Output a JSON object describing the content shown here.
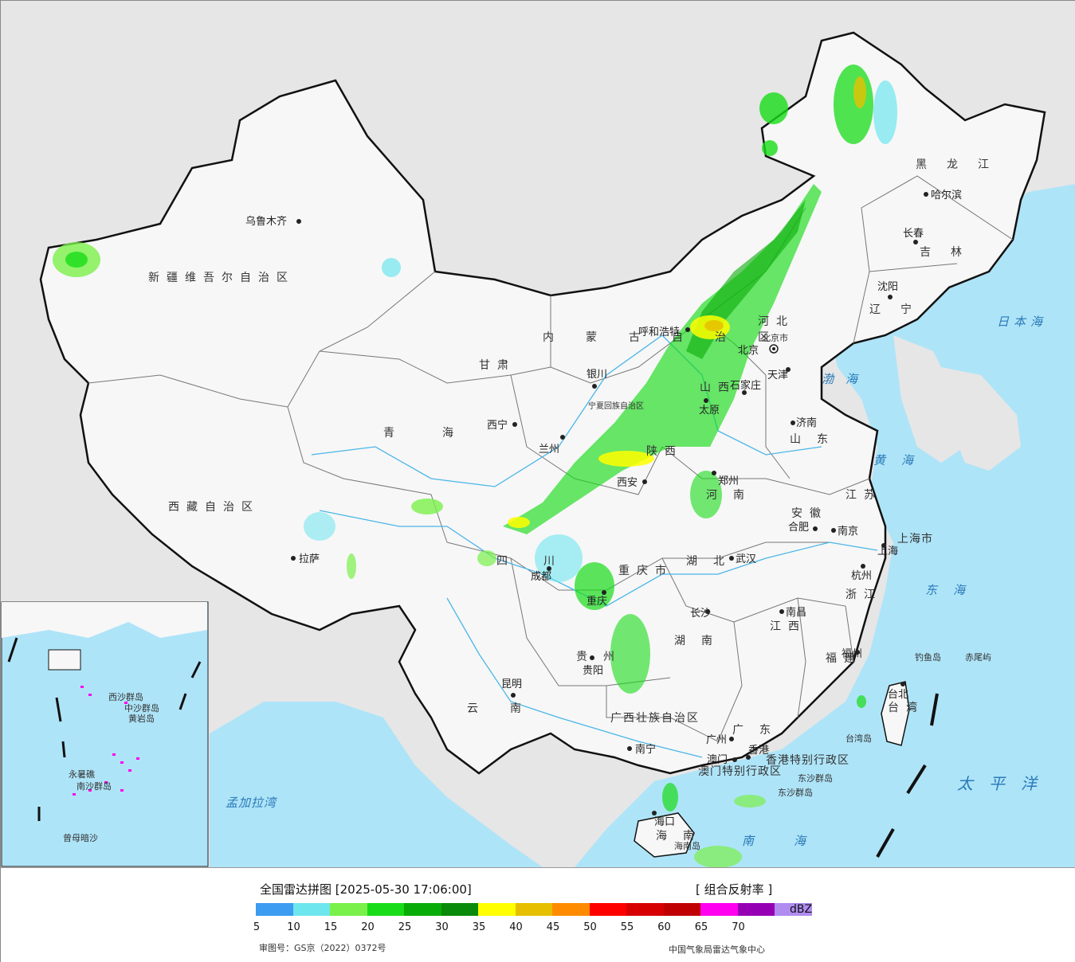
{
  "map": {
    "provinces": [
      {
        "id": "xinjiang",
        "label": "新疆维吾尔自治区"
      },
      {
        "id": "xizang",
        "label": "西藏自治区"
      },
      {
        "id": "qinghai",
        "label": "青海"
      },
      {
        "id": "gansu",
        "label": "甘肃"
      },
      {
        "id": "neimenggu",
        "label": "内蒙古自治区"
      },
      {
        "id": "heilongjiang",
        "label": "黑龙江"
      },
      {
        "id": "jilin",
        "label": "吉林"
      },
      {
        "id": "liaoning",
        "label": "辽宁"
      },
      {
        "id": "hebei",
        "label": "河北"
      },
      {
        "id": "shanxi",
        "label": "山西"
      },
      {
        "id": "shaanxi",
        "label": "陕西"
      },
      {
        "id": "shandong",
        "label": "山东"
      },
      {
        "id": "henan",
        "label": "河南"
      },
      {
        "id": "jiangsu",
        "label": "江苏"
      },
      {
        "id": "anhui",
        "label": "安徽"
      },
      {
        "id": "hubei",
        "label": "湖北"
      },
      {
        "id": "sichuan",
        "label": "四川"
      },
      {
        "id": "chongqing",
        "label": "重庆市"
      },
      {
        "id": "zhejiang",
        "label": "浙江"
      },
      {
        "id": "jiangxi",
        "label": "江西"
      },
      {
        "id": "hunan",
        "label": "湖南"
      },
      {
        "id": "guizhou",
        "label": "贵州"
      },
      {
        "id": "yunnan",
        "label": "云南"
      },
      {
        "id": "fujian",
        "label": "福建"
      },
      {
        "id": "guangxi",
        "label": "广西壮族自治区"
      },
      {
        "id": "guangdong",
        "label": "广东"
      },
      {
        "id": "hainan",
        "label": "海南"
      },
      {
        "id": "taiwan",
        "label": "台湾"
      },
      {
        "id": "shanghai",
        "label": "上海市"
      },
      {
        "id": "ningxia",
        "label": "宁夏回族自治区"
      },
      {
        "id": "hongkong",
        "label": "香港特别行政区"
      },
      {
        "id": "macau",
        "label": "澳门特别行政区"
      }
    ],
    "cities": [
      {
        "id": "urumqi",
        "label": "乌鲁木齐"
      },
      {
        "id": "lhasa",
        "label": "拉萨"
      },
      {
        "id": "xining",
        "label": "西宁"
      },
      {
        "id": "lanzhou",
        "label": "兰州"
      },
      {
        "id": "yinchuan",
        "label": "银川"
      },
      {
        "id": "hohhot",
        "label": "呼和浩特"
      },
      {
        "id": "beijing",
        "label": "北京"
      },
      {
        "id": "tianjin",
        "label": "天津"
      },
      {
        "id": "shijiazhuang",
        "label": "石家庄"
      },
      {
        "id": "taiyuan",
        "label": "太原"
      },
      {
        "id": "jinan",
        "label": "济南"
      },
      {
        "id": "xian",
        "label": "西安"
      },
      {
        "id": "zhengzhou",
        "label": "郑州"
      },
      {
        "id": "hefei",
        "label": "合肥"
      },
      {
        "id": "nanjing",
        "label": "南京"
      },
      {
        "id": "shanghai_c",
        "label": "上海"
      },
      {
        "id": "hangzhou",
        "label": "杭州"
      },
      {
        "id": "wuhan",
        "label": "武汉"
      },
      {
        "id": "chengdu",
        "label": "成都"
      },
      {
        "id": "chongqing_c",
        "label": "重庆"
      },
      {
        "id": "changsha",
        "label": "长沙"
      },
      {
        "id": "nanchang",
        "label": "南昌"
      },
      {
        "id": "fuzhou",
        "label": "福州"
      },
      {
        "id": "guiyang",
        "label": "贵阳"
      },
      {
        "id": "kunming",
        "label": "昆明"
      },
      {
        "id": "nanning",
        "label": "南宁"
      },
      {
        "id": "guangzhou",
        "label": "广州"
      },
      {
        "id": "hongkong_c",
        "label": "香港"
      },
      {
        "id": "macau_c",
        "label": "澳门"
      },
      {
        "id": "haikou",
        "label": "海口"
      },
      {
        "id": "taipei",
        "label": "台北"
      },
      {
        "id": "harbin",
        "label": "哈尔滨"
      },
      {
        "id": "changchun",
        "label": "长春"
      },
      {
        "id": "shenyang",
        "label": "沈阳"
      },
      {
        "id": "beijing_city",
        "label": "北京市"
      }
    ],
    "seas": [
      {
        "id": "japan_sea",
        "label": "日本海"
      },
      {
        "id": "bohai",
        "label": "渤海"
      },
      {
        "id": "yellow_sea",
        "label": "黄海"
      },
      {
        "id": "east_sea",
        "label": "东海"
      },
      {
        "id": "pacific",
        "label": "太平洋"
      },
      {
        "id": "south_sea",
        "label": "南海"
      },
      {
        "id": "bengal",
        "label": "孟加拉湾"
      }
    ],
    "islands": [
      {
        "id": "diaoyu",
        "label": "钓鱼岛"
      },
      {
        "id": "chiwei",
        "label": "赤尾屿"
      },
      {
        "id": "taiwan_isl",
        "label": "台湾岛"
      },
      {
        "id": "dongsha",
        "label": "东沙群岛"
      },
      {
        "id": "hainan_isl",
        "label": "海南岛"
      },
      {
        "id": "xisha",
        "label": "西沙群岛"
      },
      {
        "id": "zhongsha",
        "label": "中沙群岛"
      },
      {
        "id": "huangyan",
        "label": "黄岩岛"
      },
      {
        "id": "nansha",
        "label": "南沙群岛"
      },
      {
        "id": "yongshu",
        "label": "永暑礁"
      },
      {
        "id": "zengmu",
        "label": "曾母暗沙"
      }
    ]
  },
  "legend": {
    "title": "全国雷达拼图 [2025-05-30 17:06:00]",
    "product": "[ 组合反射率 ]",
    "unit": "dBZ",
    "ticks": [
      "5",
      "10",
      "15",
      "20",
      "25",
      "30",
      "35",
      "40",
      "45",
      "50",
      "55",
      "60",
      "65",
      "70"
    ],
    "colors": [
      "#3c9cf0",
      "#6ee6ee",
      "#7af04a",
      "#18dc18",
      "#08ac08",
      "#0a8a0a",
      "#ffff00",
      "#e6c000",
      "#ff8c00",
      "#ff0000",
      "#d60000",
      "#c00000",
      "#ff00f0",
      "#9600b4",
      "#b08cf0"
    ],
    "approval": "审图号：GS京（2022）0372号",
    "source": "中国气象局雷达气象中心"
  },
  "colors": {
    "sea": "#aee4f8",
    "land_outside": "#e6e6e6",
    "land_china": "#f7f7f7",
    "border": "#111111"
  }
}
